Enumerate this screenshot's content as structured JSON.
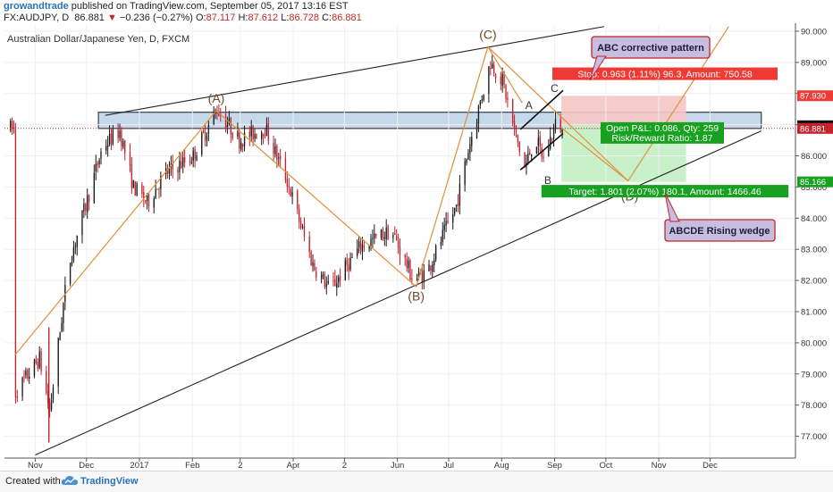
{
  "header": {
    "author": "growandtrade",
    "published": "published on TradingView.com, September 05, 2017 13:16 EST",
    "symbol": "FX:AUDJPY, D",
    "last": "86.881",
    "change": "−0.236 (−0.27%)",
    "open_label": "O:",
    "open": "87.117",
    "high_label": "H:",
    "high": "87.612",
    "low_label": "L:",
    "low": "86.728",
    "close_label": "C:",
    "close": "86.881"
  },
  "footer": {
    "created_with": "Created with",
    "brand": "TradingView"
  },
  "colors": {
    "up": "#1a1a1a",
    "down": "#c4222c",
    "wave": "#e0903a",
    "trend": "#222222",
    "zone_fill": "#c6d9ea",
    "zone_stroke": "#2f3f4f",
    "stop_fill": "#f5c6c4",
    "target_fill": "#c2efc4",
    "stop_label": "#ef3b36",
    "target_label": "#18a020",
    "callout_fill": "#c7bddf",
    "callout_stroke": "#c4222c"
  },
  "chart_data": {
    "type": "candlestick",
    "title": "Australian Dollar/Japanese Yen, D, FXCM",
    "instrument": "AUDJPY",
    "ylim": [
      76.3,
      90.2
    ],
    "y_ticks": [
      "90.000",
      "89.000",
      "88.000",
      "87.000",
      "86.000",
      "85.000",
      "84.000",
      "83.000",
      "82.000",
      "81.000",
      "80.000",
      "79.000",
      "78.000",
      "77.000"
    ],
    "x_ticks": [
      "Nov",
      "Dec",
      "2017",
      "Feb",
      "2",
      "Apr",
      "2",
      "Jun",
      "Jul",
      "Aug",
      "Sep",
      "Oct",
      "Nov",
      "Dec"
    ],
    "price_badges": [
      {
        "label": "87.930",
        "value": 87.93,
        "color": "#ef3b36"
      },
      {
        "label": "86.967",
        "value": 86.967,
        "color": "#111111"
      },
      {
        "label": "86.881",
        "value": 86.881,
        "color": "#c4222c"
      },
      {
        "label": "85.166",
        "value": 85.166,
        "color": "#18a020"
      }
    ],
    "path": [
      [
        "2016-10-20",
        78.4
      ],
      [
        "2016-11-03",
        79.5
      ],
      [
        "2016-11-09",
        77.8
      ],
      [
        "2016-11-20",
        82.5
      ],
      [
        "2016-12-10",
        86.3
      ],
      [
        "2016-12-20",
        86.8
      ],
      [
        "2016-12-28",
        85.0
      ],
      [
        "2017-01-05",
        84.5
      ],
      [
        "2017-01-15",
        85.4
      ],
      [
        "2017-02-01",
        86.0
      ],
      [
        "2017-02-15",
        87.5
      ],
      [
        "2017-02-28",
        86.5
      ],
      [
        "2017-03-15",
        86.9
      ],
      [
        "2017-03-28",
        85.2
      ],
      [
        "2017-04-12",
        82.5
      ],
      [
        "2017-04-22",
        81.7
      ],
      [
        "2017-05-10",
        83.1
      ],
      [
        "2017-05-28",
        83.6
      ],
      [
        "2017-06-10",
        82.0
      ],
      [
        "2017-06-18",
        82.3
      ],
      [
        "2017-07-05",
        84.4
      ],
      [
        "2017-07-12",
        86.2
      ],
      [
        "2017-07-18",
        87.5
      ],
      [
        "2017-07-25",
        89.0
      ],
      [
        "2017-08-01",
        88.4
      ],
      [
        "2017-08-08",
        86.8
      ],
      [
        "2017-08-14",
        85.6
      ],
      [
        "2017-08-20",
        86.6
      ],
      [
        "2017-08-25",
        85.9
      ],
      [
        "2017-09-01",
        87.0
      ],
      [
        "2017-09-05",
        86.88
      ]
    ],
    "zone": {
      "from": "2016-12-08",
      "to": "2017-12-31",
      "high": 87.4,
      "low": 86.88
    },
    "trendlines": [
      {
        "from": [
          "2016-12-12",
          87.3
        ],
        "to": [
          "2017-09-30",
          90.15
        ]
      },
      {
        "from": [
          "2016-11-01",
          76.4
        ],
        "to": [
          "2017-12-31",
          86.8
        ]
      }
    ],
    "waves": [
      {
        "label": "(A)",
        "date": "2017-02-15",
        "value": 87.45
      },
      {
        "label": "(B)",
        "date": "2017-06-12",
        "value": 81.85
      },
      {
        "label": "(C)",
        "date": "2017-07-24",
        "value": 89.5
      },
      {
        "label": "(D)",
        "date": "2017-10-15",
        "value": 85.05
      },
      {
        "label": "A",
        "date": "2017-08-17",
        "value": 87.3
      },
      {
        "label": "B",
        "date": "2017-08-28",
        "value": 85.5
      },
      {
        "label": "C",
        "date": "2017-09-01",
        "value": 87.85
      }
    ],
    "wave_lines": [
      [
        [
          "2016-10-20",
          79.6
        ],
        [
          "2017-02-15",
          87.45
        ],
        [
          "2017-06-12",
          81.8
        ],
        [
          "2017-07-24",
          89.5
        ],
        [
          "2017-10-14",
          85.2
        ],
        [
          "2017-12-12",
          90.15
        ]
      ],
      [
        [
          "2017-07-24",
          89.5
        ],
        [
          "2017-08-13",
          87.7
        ]
      ],
      [
        [
          "2017-09-05",
          86.9
        ],
        [
          "2017-10-14",
          85.2
        ]
      ]
    ],
    "abc_channel": [
      [
        [
          "2017-08-12",
          85.55
        ],
        [
          "2017-09-06",
          86.72
        ]
      ],
      [
        [
          "2017-08-12",
          86.85
        ],
        [
          "2017-09-06",
          88.1
        ]
      ]
    ],
    "position": {
      "from": "2017-09-05",
      "to": "2017-11-17",
      "entry": 86.967,
      "stop": 87.93,
      "target": 85.166
    },
    "labels": {
      "stop": "Stop: 0.963 (1.11%) 96.3, Amount: 750.58",
      "pl": "Open P&L: 0.086, Qty: 259",
      "rr": "Risk/Reward Ratio: 1.87",
      "target": "Target: 1.801 (2.07%) 180.1, Amount: 1466.46"
    },
    "callouts": [
      "ABC corrective pattern",
      "ABCDE Rising wedge"
    ]
  }
}
